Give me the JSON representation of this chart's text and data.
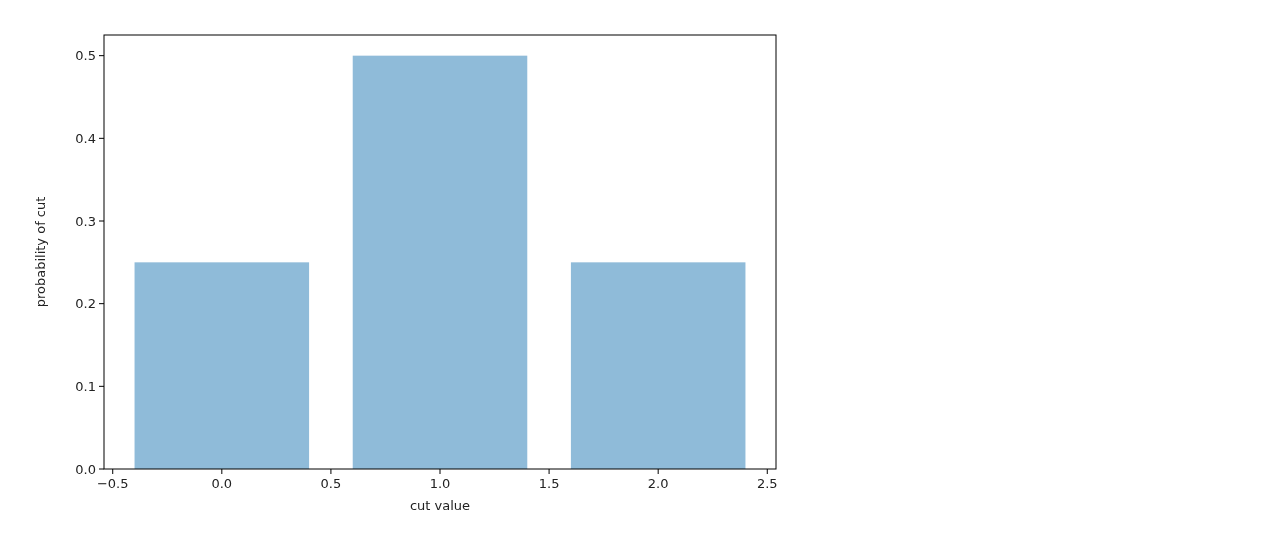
{
  "chart_data": {
    "type": "bar",
    "xlabel": "cut value",
    "ylabel": "probability of cut",
    "x": [
      0,
      1,
      2
    ],
    "values": [
      0.25,
      0.5,
      0.25
    ],
    "color": "#8fbbd9",
    "xlim": [
      -0.54,
      2.54
    ],
    "xticks": [
      {
        "value": -0.5,
        "label": "−0.5"
      },
      {
        "value": 0,
        "label": "0.0"
      },
      {
        "value": 0.5,
        "label": "0.5"
      },
      {
        "value": 1,
        "label": "1.0"
      },
      {
        "value": 1.5,
        "label": "1.5"
      },
      {
        "value": 2,
        "label": "2.0"
      },
      {
        "value": 2.5,
        "label": "2.5"
      }
    ],
    "ylim": [
      0,
      0.525
    ],
    "yticks": [
      {
        "value": 0,
        "label": "0.0"
      },
      {
        "value": 0.1,
        "label": "0.1"
      },
      {
        "value": 0.2,
        "label": "0.2"
      },
      {
        "value": 0.3,
        "label": "0.3"
      },
      {
        "value": 0.4,
        "label": "0.4"
      },
      {
        "value": 0.5,
        "label": "0.5"
      }
    ],
    "grid": false
  }
}
